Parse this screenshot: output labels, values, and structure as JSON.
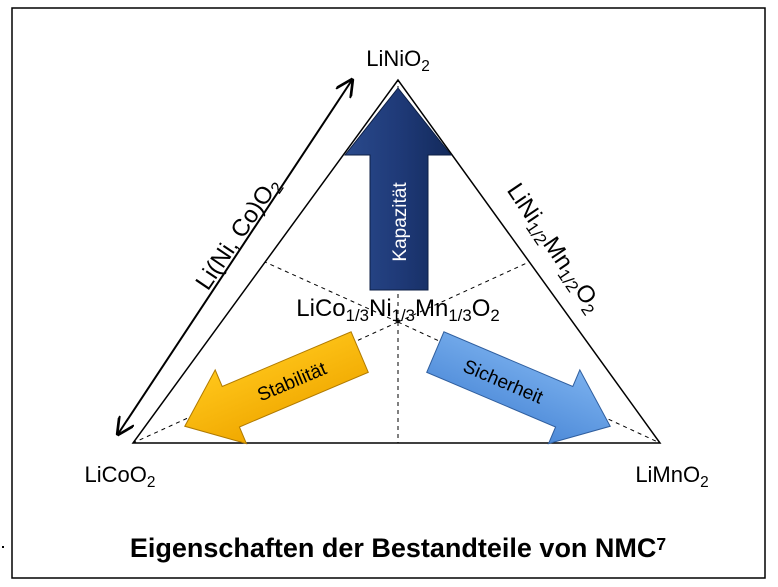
{
  "vertices": {
    "top": [
      {
        "text": "LiNiO"
      },
      {
        "sub": "2"
      }
    ],
    "left": [
      {
        "text": "LiCoO"
      },
      {
        "sub": "2"
      }
    ],
    "right": [
      {
        "text": "LiMnO"
      },
      {
        "sub": "2"
      }
    ]
  },
  "center": [
    {
      "text": "LiCo"
    },
    {
      "sub": "1/3"
    },
    {
      "text": "Ni"
    },
    {
      "sub": "1/3"
    },
    {
      "text": "Mn"
    },
    {
      "sub": "1/3"
    },
    {
      "text": "O"
    },
    {
      "sub": "2"
    }
  ],
  "edges": {
    "left": [
      {
        "text": "Li(Ni, Co)O"
      },
      {
        "sub": "2"
      }
    ],
    "right": [
      {
        "text": "LiNi"
      },
      {
        "sub": "1/2"
      },
      {
        "text": "Mn"
      },
      {
        "sub": "1/2"
      },
      {
        "text": "O"
      },
      {
        "sub": "2"
      }
    ]
  },
  "arrows": {
    "capacity": "Kapazität",
    "stability": "Stabilität",
    "safety": "Sicherheit"
  },
  "caption": [
    {
      "text": "Eigenschaften der Bestandteile von NMC"
    },
    {
      "sup": "7"
    }
  ]
}
